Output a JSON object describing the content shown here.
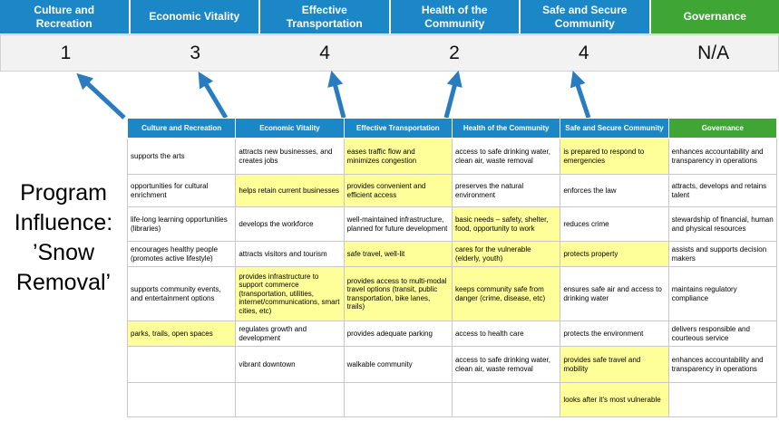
{
  "colors": {
    "header_blue": "#1b87c6",
    "header_green": "#3fa535",
    "highlight_yellow": "#ffff99",
    "arrow_blue": "#2a7cc0",
    "score_band_bg": "#f2f2f2"
  },
  "title": {
    "lines": [
      "Program",
      "Influence:",
      "’Snow",
      "Removal’"
    ]
  },
  "scoreboard": {
    "columns": [
      {
        "label": "Culture and Recreation",
        "score": "1",
        "theme": "blue"
      },
      {
        "label": "Economic Vitality",
        "score": "3",
        "theme": "blue"
      },
      {
        "label": "Effective Transportation",
        "score": "4",
        "theme": "blue"
      },
      {
        "label": "Health of the Community",
        "score": "2",
        "theme": "blue"
      },
      {
        "label": "Safe and Secure Community",
        "score": "4",
        "theme": "blue"
      },
      {
        "label": "Governance",
        "score": "N/A",
        "theme": "green"
      }
    ]
  },
  "matrix": {
    "headers": [
      {
        "label": "Culture and Recreation",
        "theme": "blue"
      },
      {
        "label": "Economic Vitality",
        "theme": "blue"
      },
      {
        "label": "Effective Transportation",
        "theme": "blue"
      },
      {
        "label": "Health of the Community",
        "theme": "blue"
      },
      {
        "label": "Safe and Secure Community",
        "theme": "blue"
      },
      {
        "label": "Governance",
        "theme": "green"
      }
    ],
    "rows": [
      [
        {
          "text": "supports the arts",
          "highlight": false
        },
        {
          "text": "attracts new businesses, and creates jobs",
          "highlight": false
        },
        {
          "text": "eases traffic flow and minimizes congestion",
          "highlight": true
        },
        {
          "text": "access to safe drinking water, clean air, waste removal",
          "highlight": false
        },
        {
          "text": "is prepared to respond to emergencies",
          "highlight": true
        },
        {
          "text": "enhances accountability and transparency in operations",
          "highlight": false
        }
      ],
      [
        {
          "text": "opportunities for cultural enrichment",
          "highlight": false
        },
        {
          "text": "helps retain current businesses",
          "highlight": true
        },
        {
          "text": "provides convenient and efficient access",
          "highlight": true
        },
        {
          "text": "preserves the natural environment",
          "highlight": false
        },
        {
          "text": "enforces the law",
          "highlight": false
        },
        {
          "text": "attracts, develops and retains talent",
          "highlight": false
        }
      ],
      [
        {
          "text": "life-long learning opportunities (libraries)",
          "highlight": false
        },
        {
          "text": "develops the workforce",
          "highlight": false
        },
        {
          "text": "well-maintained infrastructure, planned for future development",
          "highlight": false
        },
        {
          "text": "basic needs – safety, shelter, food, opportunity to work",
          "highlight": true
        },
        {
          "text": "reduces crime",
          "highlight": false
        },
        {
          "text": "stewardship of financial, human and physical resources",
          "highlight": false
        }
      ],
      [
        {
          "text": "encourages healthy people (promotes active lifestyle)",
          "highlight": false
        },
        {
          "text": "attracts visitors and tourism",
          "highlight": false
        },
        {
          "text": "safe travel, well-lit",
          "highlight": true
        },
        {
          "text": "cares for the vulnerable (elderly, youth)",
          "highlight": true
        },
        {
          "text": "protects property",
          "highlight": true
        },
        {
          "text": "assists and supports decision makers",
          "highlight": false
        }
      ],
      [
        {
          "text": "supports community events, and entertainment options",
          "highlight": false
        },
        {
          "text": "provides infrastructure to support commerce (transportation, utilities, internet/communications, smart cities, etc)",
          "highlight": true
        },
        {
          "text": "provides access to multi-modal travel options (transit, public transportation, bike lanes, trails)",
          "highlight": true
        },
        {
          "text": "keeps community safe from danger (crime, disease, etc)",
          "highlight": true
        },
        {
          "text": "ensures safe air and access to drinking water",
          "highlight": false
        },
        {
          "text": "maintains regulatory compliance",
          "highlight": false
        }
      ],
      [
        {
          "text": "parks, trails, open spaces",
          "highlight": true
        },
        {
          "text": "regulates growth and development",
          "highlight": false
        },
        {
          "text": "provides adequate parking",
          "highlight": false
        },
        {
          "text": "access to health care",
          "highlight": false
        },
        {
          "text": "protects the environment",
          "highlight": false
        },
        {
          "text": "delivers responsible and courteous service",
          "highlight": false
        }
      ],
      [
        {
          "text": "",
          "highlight": false
        },
        {
          "text": "vibrant downtown",
          "highlight": false
        },
        {
          "text": "walkable community",
          "highlight": false
        },
        {
          "text": "access to safe drinking water, clean air, waste removal",
          "highlight": false
        },
        {
          "text": "provides safe travel and mobility",
          "highlight": true
        },
        {
          "text": "enhances accountability and transparency in operations",
          "highlight": false
        }
      ],
      [
        {
          "text": "",
          "highlight": false
        },
        {
          "text": "",
          "highlight": false
        },
        {
          "text": "",
          "highlight": false
        },
        {
          "text": "",
          "highlight": false
        },
        {
          "text": "looks after it's most vulnerable",
          "highlight": true
        },
        {
          "text": "",
          "highlight": false
        }
      ]
    ]
  }
}
